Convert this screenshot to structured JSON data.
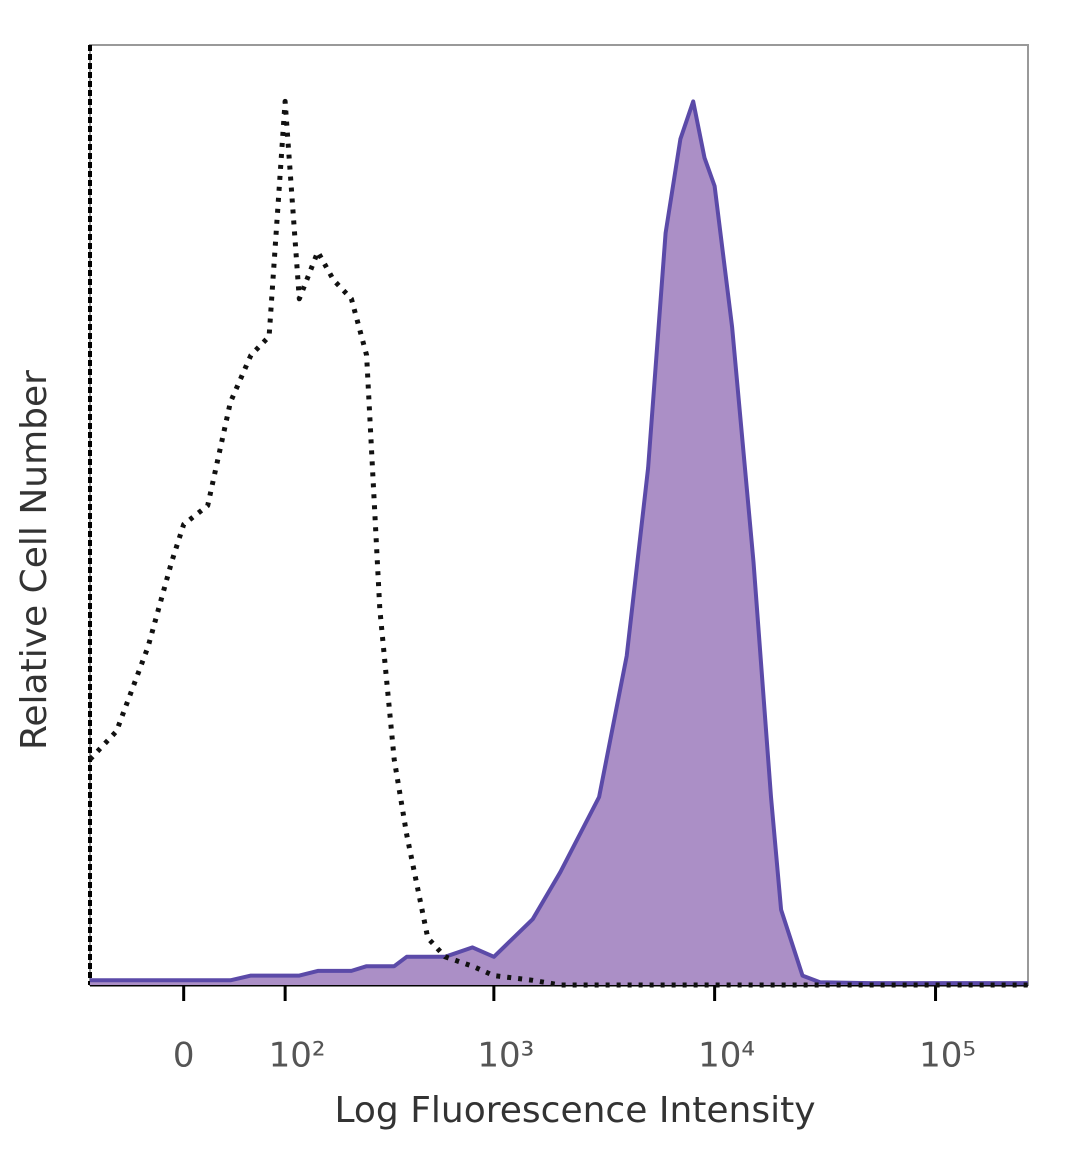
{
  "chart_data": {
    "type": "histogram-overlay",
    "x_label": "Log Fluorescence Intensity",
    "y_label": "Relative Cell Number",
    "xscale": "biexponential",
    "xlim": [
      -90,
      262144
    ],
    "ylim": [
      0,
      100
    ],
    "xticks": [
      0,
      {
        "value": 100,
        "label": "10²"
      },
      {
        "value": 1000,
        "label": "10³"
      },
      {
        "value": 10000,
        "label": "10⁴"
      },
      {
        "value": 100000,
        "label": "10⁵"
      }
    ],
    "x": [
      -90,
      -60,
      -30,
      -10,
      0,
      20,
      40,
      60,
      80,
      100,
      120,
      150,
      180,
      220,
      260,
      300,
      350,
      400,
      500,
      600,
      800,
      1000,
      1500,
      2000,
      3000,
      4000,
      5000,
      6000,
      7000,
      8000,
      9000,
      10000,
      12000,
      15000,
      18000,
      20000,
      25000,
      30000,
      50000,
      100000,
      262144
    ],
    "series": [
      {
        "color": "#111111",
        "style": "dotted",
        "filled": false,
        "values": [
          24,
          27,
          36,
          45,
          49,
          51,
          62,
          67,
          69,
          94,
          73,
          78,
          75,
          73,
          67,
          40,
          24,
          16,
          5,
          3,
          2,
          1,
          0.5,
          0,
          0,
          0,
          0,
          0,
          0,
          0,
          0,
          0,
          0,
          0,
          0,
          0,
          0,
          0,
          0,
          0,
          0
        ]
      },
      {
        "color": "#5b4aa8",
        "fill": "#ab8fc6",
        "style": "solid",
        "filled": true,
        "values": [
          0.5,
          0.5,
          0.5,
          0.5,
          0.5,
          0.5,
          0.5,
          1,
          1,
          1,
          1,
          1.5,
          1.5,
          1.5,
          2,
          2,
          2,
          3,
          3,
          3,
          4,
          3,
          7,
          12,
          20,
          35,
          55,
          80,
          90,
          94,
          88,
          85,
          70,
          45,
          20,
          8,
          1,
          0.3,
          0.2,
          0.2,
          0.2
        ]
      }
    ]
  }
}
